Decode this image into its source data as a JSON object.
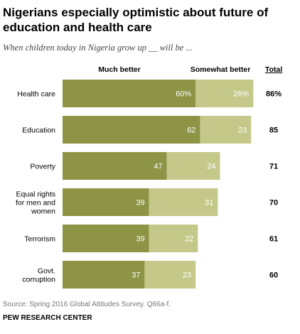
{
  "title": "Nigerians especially optimistic about future of education and health care",
  "subtitle": "When children today in Nigeria grow up __ will be ...",
  "source": "Source: Spring 2016 Global Attitudes Survey. Q66a-f.",
  "brand": "PEW RESEARCH CENTER",
  "colors": {
    "much_better": "#8d9445",
    "somewhat_better": "#c4c98a"
  },
  "chart_data": {
    "type": "bar",
    "orientation": "horizontal",
    "stacked": true,
    "categories": [
      [
        "Health care"
      ],
      [
        "Education"
      ],
      [
        "Poverty"
      ],
      [
        "Equal rights",
        "for men and",
        "women"
      ],
      [
        "Terrorism"
      ],
      [
        "Govt.",
        "corruption"
      ]
    ],
    "series": [
      {
        "name": "Much better",
        "values": [
          60,
          62,
          47,
          39,
          39,
          37
        ],
        "labels": [
          "60%",
          "62",
          "47",
          "39",
          "39",
          "37"
        ]
      },
      {
        "name": "Somewhat better",
        "values": [
          26,
          23,
          24,
          31,
          22,
          23
        ],
        "labels": [
          "26%",
          "23",
          "24",
          "31",
          "22",
          "23"
        ]
      }
    ],
    "total": {
      "name": "Total",
      "values": [
        86,
        85,
        71,
        70,
        61,
        60
      ],
      "labels": [
        "86%",
        "85",
        "71",
        "70",
        "61",
        "60"
      ]
    },
    "xlim": [
      0,
      100
    ],
    "legend_position": "top"
  }
}
